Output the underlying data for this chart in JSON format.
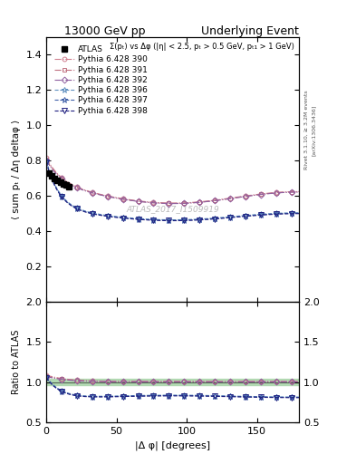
{
  "title_left": "13000 GeV pp",
  "title_right": "Underlying Event",
  "annotation": "Σ(pₜ) vs Δφ (|η| < 2.5, pₜ > 0.5 GeV, pₜ₁ > 1 GeV)",
  "watermark": "ATLAS_2017_I1509919",
  "rivet_label": "Rivet 3.1.10, ≥ 3.2M events",
  "arxiv_label": "[arXiv:1306.3436]",
  "ylabel_main": "⟨ sum pₜ / Δη deltaφ ⟩",
  "ylabel_ratio": "Ratio to ATLAS",
  "xlabel": "|Δ φ| [degrees]",
  "ylim_main": [
    0.0,
    1.5
  ],
  "ylim_ratio": [
    0.5,
    2.0
  ],
  "yticks_main": [
    0.2,
    0.4,
    0.6,
    0.8,
    1.0,
    1.2,
    1.4
  ],
  "yticks_ratio": [
    0.5,
    1.0,
    1.5,
    2.0
  ],
  "xlim": [
    0,
    180
  ],
  "xticks": [
    0,
    50,
    100,
    150
  ],
  "colors_group1": [
    "#d08090",
    "#c07080",
    "#9060a0"
  ],
  "colors_group2": [
    "#6090c0",
    "#4060a8",
    "#202080"
  ],
  "background_color": "#ffffff",
  "ratio_band_color": "#90c890"
}
